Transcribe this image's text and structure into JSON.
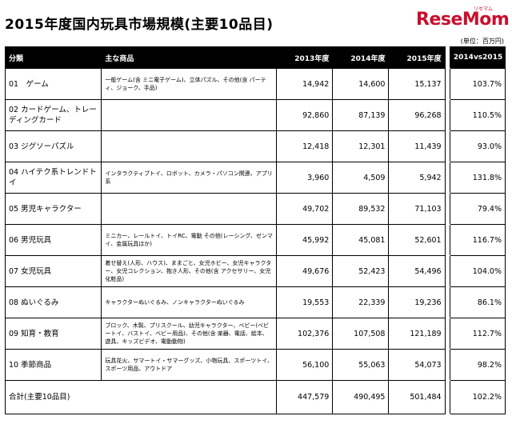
{
  "header": {
    "title": "2015年度国内玩具市場規模(主要10品目)",
    "logo_text": "ReseMom",
    "logo_ruby": "リセマム",
    "unit_note": "(単位：百万円)"
  },
  "table": {
    "columns": [
      "分類",
      "主な商品",
      "2013年度",
      "2014年度",
      "2015年度",
      "2014vs2015"
    ],
    "rows": [
      {
        "category": "01　ゲーム",
        "products": "一般ゲーム(含 ミニ電子ゲーム)、立体パズル、その他(含 パーティ、ジョーク、手品)",
        "y2013": "14,942",
        "y2014": "14,600",
        "y2015": "15,137",
        "ratio": "103.7%"
      },
      {
        "category": "02 カードゲーム、トレーディングカード",
        "products": "",
        "y2013": "92,860",
        "y2014": "87,139",
        "y2015": "96,268",
        "ratio": "110.5%"
      },
      {
        "category": "03 ジグソーパズル",
        "products": "",
        "y2013": "12,418",
        "y2014": "12,301",
        "y2015": "11,439",
        "ratio": "93.0%"
      },
      {
        "category": "04 ハイテク系トレンドトイ",
        "products": "インタラクティブトイ、ロボット、カメラ・パソコン関連、アプリ系",
        "y2013": "3,960",
        "y2014": "4,509",
        "y2015": "5,942",
        "ratio": "131.8%"
      },
      {
        "category": "05 男児キャラクター",
        "products": "",
        "y2013": "49,702",
        "y2014": "89,532",
        "y2015": "71,103",
        "ratio": "79.4%"
      },
      {
        "category": "06 男児玩具",
        "products": "ミニカー、レールトイ、トイRC、電動 その他(レーシング、ゼンマイ、金属玩具ほか)",
        "y2013": "45,992",
        "y2014": "45,081",
        "y2015": "52,601",
        "ratio": "116.7%"
      },
      {
        "category": "07 女児玩具",
        "products": "着せ替え(人形、ハウス)、ままごと、女児ホビー、女児キャラクター、女児コレクション、抱き人形、その他(含 アクセサリー、女児化粧品)",
        "y2013": "49,676",
        "y2014": "52,423",
        "y2015": "54,496",
        "ratio": "104.0%"
      },
      {
        "category": "08 ぬいぐるみ",
        "products": "キャラクターぬいぐるみ、ノンキャラクターぬいぐるみ",
        "y2013": "19,553",
        "y2014": "22,339",
        "y2015": "19,236",
        "ratio": "86.1%"
      },
      {
        "category": "09 知育・教育",
        "products": "ブロック、木製、プリスクール、幼児キャラクター、ベビー(ベビートイ、バストイ、ベビー用品)、その他(含 楽器、電話、絵本、遊具、キッズビデオ、電動動物)",
        "y2013": "102,376",
        "y2014": "107,508",
        "y2015": "121,189",
        "ratio": "112.7%"
      },
      {
        "category": "10 季節商品",
        "products": "玩具花火、サマートイ・サマーグッズ、小物玩具、スポーツトイ、スポーツ用品、アウトドア",
        "y2013": "56,100",
        "y2014": "55,063",
        "y2015": "54,073",
        "ratio": "98.2%"
      }
    ],
    "total": {
      "label": "合計(主要10品目)",
      "y2013": "447,579",
      "y2014": "490,495",
      "y2015": "501,484",
      "ratio": "102.2%"
    }
  }
}
